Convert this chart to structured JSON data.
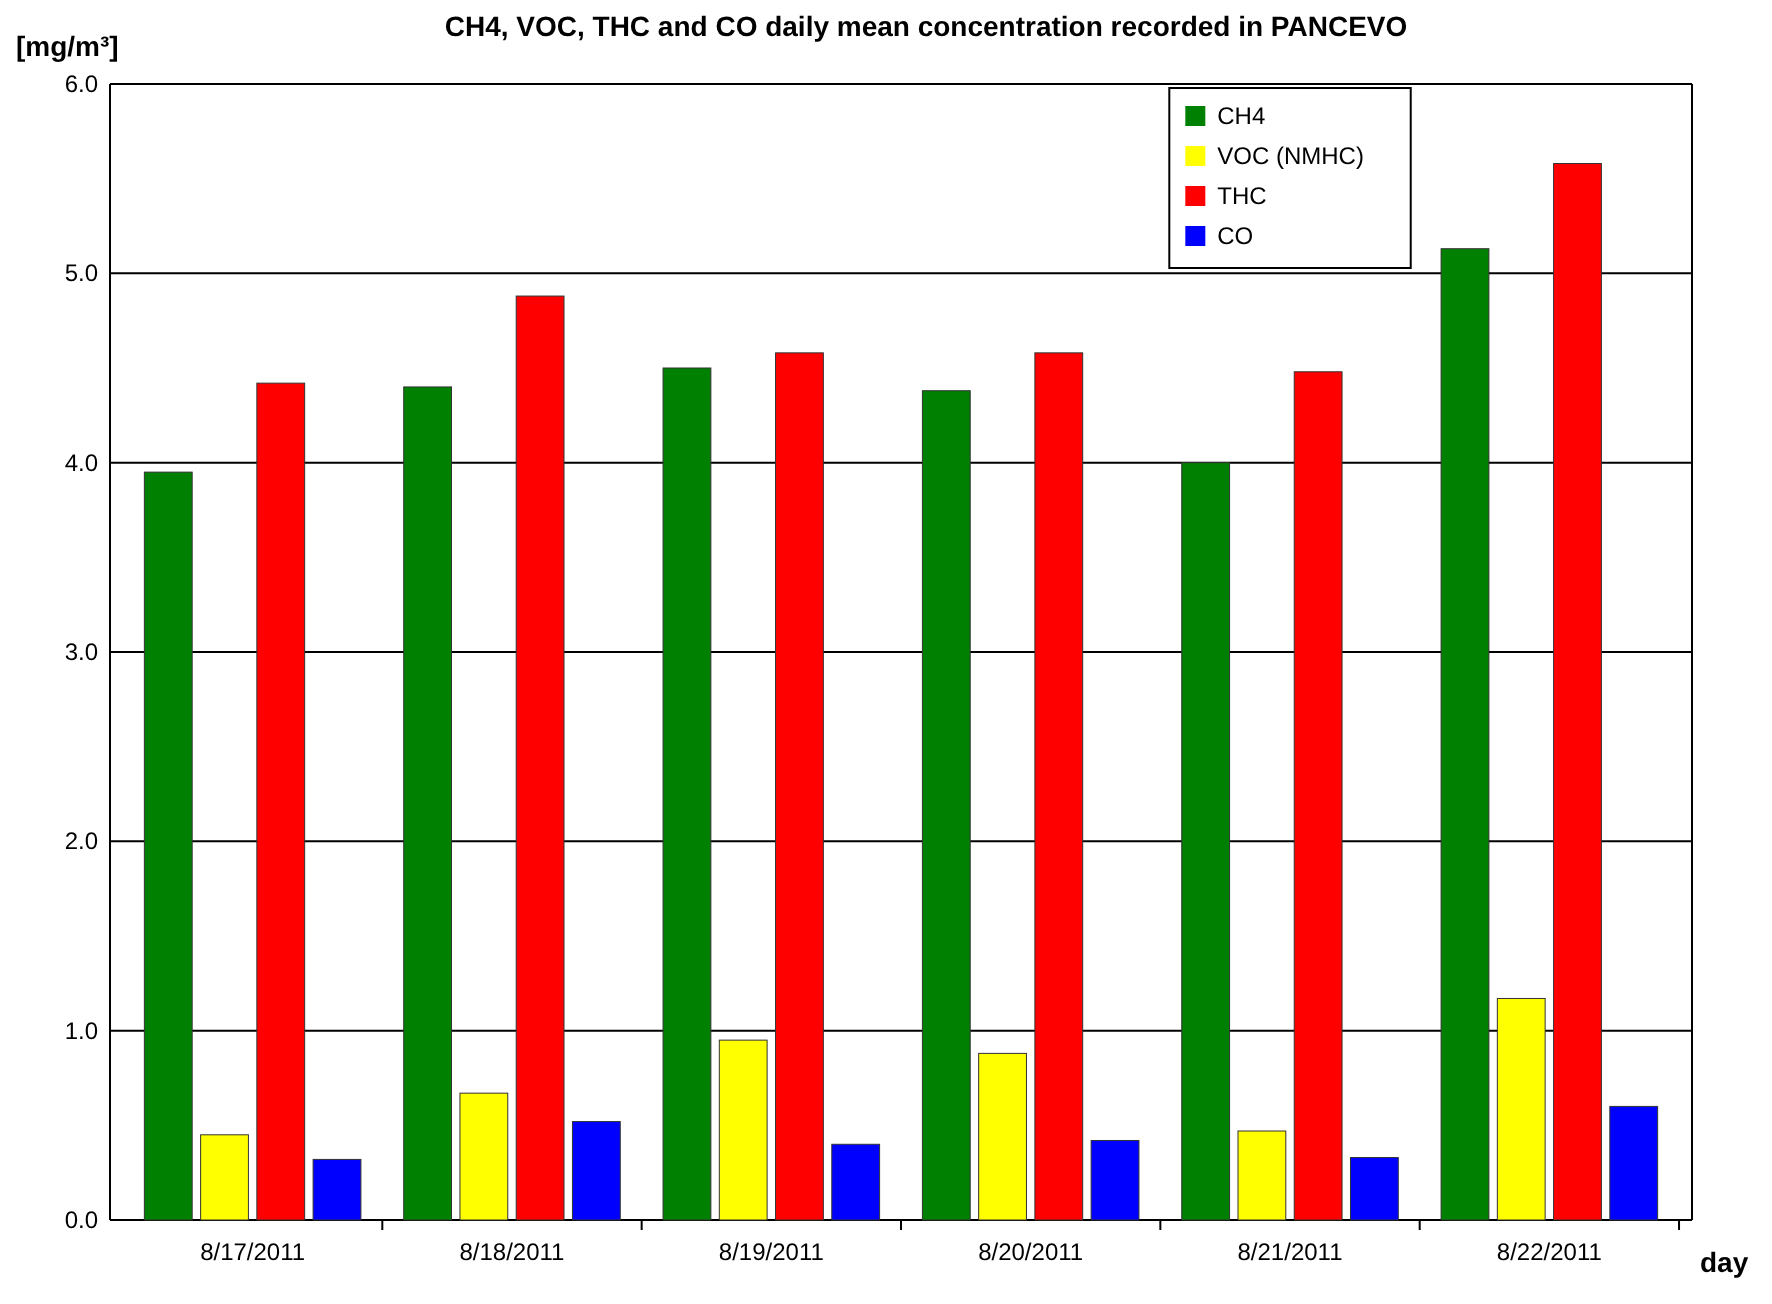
{
  "chart_data": {
    "type": "bar",
    "title": "CH4, VOC, THC and CO daily mean concentration recorded in PANCEVO",
    "ylabel": "[mg/m³]",
    "xlabel": "day",
    "categories": [
      "8/17/2011",
      "8/18/2011",
      "8/19/2011",
      "8/20/2011",
      "8/21/2011",
      "8/22/2011"
    ],
    "series": [
      {
        "name": "CH4",
        "color": "#008000",
        "values": [
          3.95,
          4.4,
          4.5,
          4.38,
          4.0,
          5.13
        ]
      },
      {
        "name": "VOC (NMHC)",
        "color": "#ffff00",
        "values": [
          0.45,
          0.67,
          0.95,
          0.88,
          0.47,
          1.17
        ]
      },
      {
        "name": "THC",
        "color": "#ff0000",
        "values": [
          4.42,
          4.88,
          4.58,
          4.58,
          4.48,
          5.58
        ]
      },
      {
        "name": "CO",
        "color": "#0000ff",
        "values": [
          0.32,
          0.52,
          0.4,
          0.42,
          0.33,
          0.6
        ]
      }
    ],
    "ylim": [
      0,
      6
    ],
    "yticks": [
      {
        "value": 0,
        "label": "0.0"
      },
      {
        "value": 1,
        "label": "1.0"
      },
      {
        "value": 2,
        "label": "2.0"
      },
      {
        "value": 3,
        "label": "3.0"
      },
      {
        "value": 4,
        "label": "4.0"
      },
      {
        "value": 5,
        "label": "5.0"
      },
      {
        "value": 6,
        "label": "6.0"
      }
    ],
    "grid": "y",
    "legend": "top right"
  }
}
